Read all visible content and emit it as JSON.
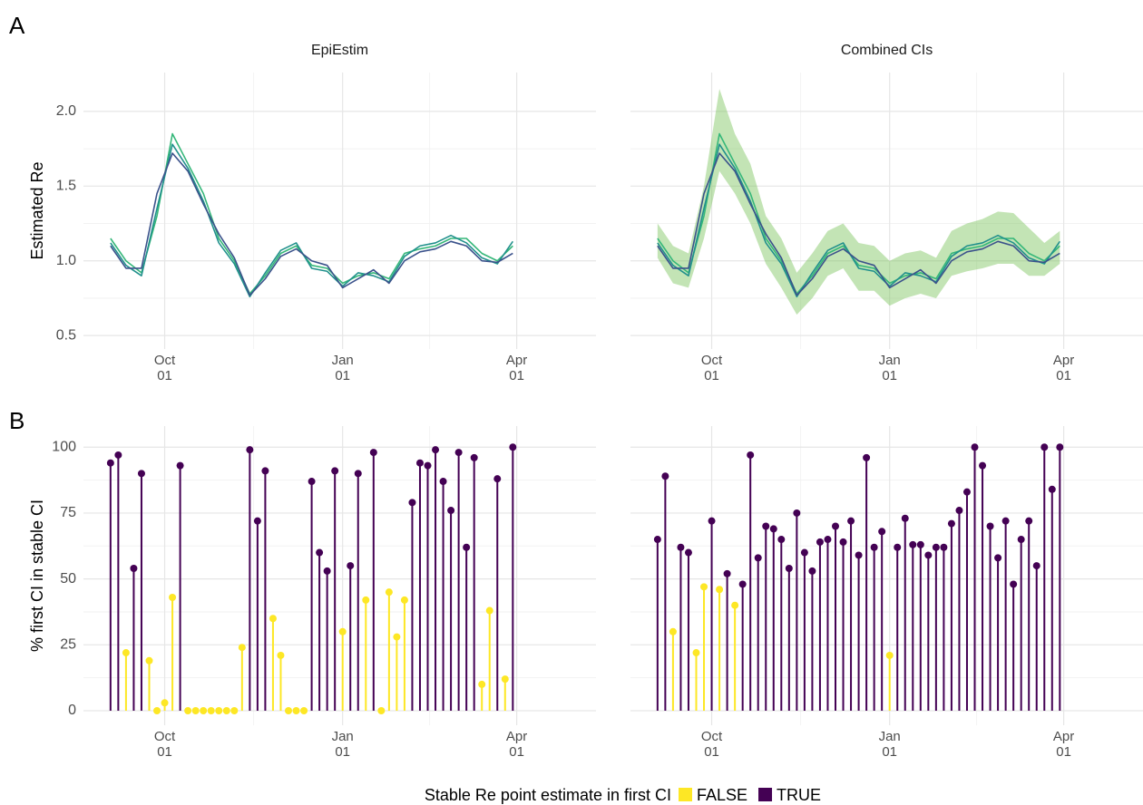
{
  "panel_labels": [
    "A",
    "B"
  ],
  "legend_title": "Stable Re point estimate in first CI",
  "chart_data": [
    {
      "type": "line",
      "title": "EpiEstim",
      "y_label": "Estimated Re",
      "x": [
        -28,
        -20,
        -12,
        -4,
        4,
        12,
        20,
        28,
        36,
        44,
        52,
        60,
        68,
        76,
        84,
        92,
        100,
        108,
        116,
        124,
        132,
        140,
        148,
        156,
        164,
        172,
        180
      ],
      "xlim": [
        -42,
        223
      ],
      "xticks": [
        {
          "value": 0,
          "label": "Oct\n01"
        },
        {
          "value": 92,
          "label": "Jan\n01"
        },
        {
          "value": 182,
          "label": "Apr\n01"
        }
      ],
      "ylim": [
        0.41,
        2.26
      ],
      "yticks": [
        {
          "value": 0.5,
          "label": "0.5"
        },
        {
          "value": 1,
          "label": "1.0"
        },
        {
          "value": 1.5,
          "label": "1.5"
        },
        {
          "value": 2,
          "label": "2.0"
        }
      ],
      "grid": true,
      "series": [
        {
          "color": "#35b779",
          "values": [
            1.15,
            1.0,
            0.92,
            1.3,
            1.85,
            1.65,
            1.45,
            1.15,
            1.0,
            0.78,
            0.9,
            1.05,
            1.1,
            0.97,
            0.95,
            0.85,
            0.9,
            0.92,
            0.88,
            1.05,
            1.08,
            1.1,
            1.15,
            1.15,
            1.05,
            1.0,
            1.1
          ]
        },
        {
          "color": "#21908c",
          "values": [
            1.12,
            0.97,
            0.9,
            1.35,
            1.78,
            1.62,
            1.4,
            1.12,
            0.98,
            0.76,
            0.92,
            1.07,
            1.12,
            0.95,
            0.93,
            0.83,
            0.92,
            0.9,
            0.86,
            1.03,
            1.1,
            1.12,
            1.17,
            1.12,
            1.02,
            0.98,
            1.13
          ]
        },
        {
          "color": "#3b528b",
          "values": [
            1.1,
            0.95,
            0.95,
            1.45,
            1.72,
            1.6,
            1.38,
            1.18,
            1.02,
            0.77,
            0.88,
            1.03,
            1.08,
            1.0,
            0.97,
            0.82,
            0.88,
            0.94,
            0.85,
            1.0,
            1.06,
            1.08,
            1.13,
            1.1,
            1.0,
            0.99,
            1.05
          ]
        }
      ]
    },
    {
      "type": "line",
      "title": "Combined CIs",
      "x": [
        -28,
        -20,
        -12,
        -4,
        4,
        12,
        20,
        28,
        36,
        44,
        52,
        60,
        68,
        76,
        84,
        92,
        100,
        108,
        116,
        124,
        132,
        140,
        148,
        156,
        164,
        172,
        180
      ],
      "xlim": [
        -42,
        223
      ],
      "xticks": [
        {
          "value": 0,
          "label": "Oct\n01"
        },
        {
          "value": 92,
          "label": "Jan\n01"
        },
        {
          "value": 182,
          "label": "Apr\n01"
        }
      ],
      "ylim": [
        0.41,
        2.26
      ],
      "yticks": [
        0.5,
        1,
        1.5,
        2
      ],
      "grid": true,
      "band": {
        "color": "#7ac35a",
        "lower": [
          1.02,
          0.85,
          0.82,
          1.15,
          1.6,
          1.45,
          1.25,
          0.98,
          0.82,
          0.64,
          0.75,
          0.9,
          0.95,
          0.8,
          0.8,
          0.7,
          0.75,
          0.78,
          0.75,
          0.9,
          0.93,
          0.95,
          0.98,
          0.98,
          0.9,
          0.9,
          0.98
        ],
        "upper": [
          1.25,
          1.1,
          1.05,
          1.5,
          2.15,
          1.85,
          1.65,
          1.3,
          1.15,
          0.92,
          1.05,
          1.2,
          1.25,
          1.12,
          1.1,
          1.0,
          1.05,
          1.07,
          1.02,
          1.2,
          1.25,
          1.28,
          1.33,
          1.32,
          1.22,
          1.12,
          1.2
        ]
      },
      "series": [
        {
          "color": "#35b779",
          "values": [
            1.15,
            1.0,
            0.92,
            1.3,
            1.85,
            1.65,
            1.45,
            1.15,
            1.0,
            0.78,
            0.9,
            1.05,
            1.1,
            0.97,
            0.95,
            0.85,
            0.9,
            0.92,
            0.88,
            1.05,
            1.08,
            1.1,
            1.15,
            1.15,
            1.05,
            1.0,
            1.1
          ]
        },
        {
          "color": "#21908c",
          "values": [
            1.12,
            0.97,
            0.9,
            1.35,
            1.78,
            1.62,
            1.4,
            1.12,
            0.98,
            0.76,
            0.92,
            1.07,
            1.12,
            0.95,
            0.93,
            0.83,
            0.92,
            0.9,
            0.86,
            1.03,
            1.1,
            1.12,
            1.17,
            1.12,
            1.02,
            0.98,
            1.13
          ]
        },
        {
          "color": "#3b528b",
          "values": [
            1.1,
            0.95,
            0.95,
            1.45,
            1.72,
            1.6,
            1.38,
            1.18,
            1.02,
            0.77,
            0.88,
            1.03,
            1.08,
            1.0,
            0.97,
            0.82,
            0.88,
            0.94,
            0.85,
            1.0,
            1.06,
            1.08,
            1.13,
            1.1,
            1.0,
            0.99,
            1.05
          ]
        }
      ]
    },
    {
      "type": "lollipop",
      "y_label": "% first CI in stable CI",
      "x": [
        -28,
        -24,
        -20,
        -16,
        -12,
        -8,
        -4,
        0,
        4,
        8,
        12,
        16,
        20,
        24,
        28,
        32,
        36,
        40,
        44,
        48,
        52,
        56,
        60,
        64,
        68,
        72,
        76,
        80,
        84,
        88,
        92,
        96,
        100,
        104,
        108,
        112,
        116,
        120,
        124,
        128,
        132,
        136,
        140,
        144,
        148,
        152,
        156,
        160,
        164,
        168,
        172,
        176,
        180
      ],
      "xlim": [
        -42,
        223
      ],
      "xticks": [
        {
          "value": 0,
          "label": "Oct\n01"
        },
        {
          "value": 92,
          "label": "Jan\n01"
        },
        {
          "value": 182,
          "label": "Apr\n01"
        }
      ],
      "ylim": [
        -5.5,
        108
      ],
      "yticks": [
        0,
        25,
        50,
        75,
        100
      ],
      "grid": true,
      "series": [
        {
          "name": "FALSE",
          "color": "#fde725",
          "values": [
            null,
            null,
            22,
            null,
            null,
            19,
            0,
            3,
            43,
            null,
            0,
            0,
            0,
            0,
            0,
            0,
            0,
            24,
            null,
            null,
            null,
            35,
            21,
            0,
            0,
            0,
            null,
            null,
            null,
            null,
            30,
            null,
            null,
            42,
            null,
            0,
            45,
            28,
            42,
            null,
            null,
            null,
            null,
            null,
            null,
            null,
            null,
            null,
            10,
            38,
            null,
            12,
            null
          ]
        },
        {
          "name": "TRUE",
          "color": "#440154",
          "values": [
            94,
            97,
            null,
            54,
            90,
            null,
            null,
            null,
            null,
            93,
            null,
            null,
            null,
            null,
            null,
            null,
            null,
            null,
            99,
            72,
            91,
            null,
            null,
            null,
            null,
            null,
            87,
            60,
            53,
            91,
            null,
            55,
            90,
            null,
            98,
            null,
            null,
            null,
            null,
            79,
            94,
            93,
            99,
            87,
            76,
            98,
            62,
            96,
            null,
            null,
            88,
            null,
            100
          ]
        }
      ]
    },
    {
      "type": "lollipop",
      "x": [
        -28,
        -24,
        -20,
        -16,
        -12,
        -8,
        -4,
        0,
        4,
        8,
        12,
        16,
        20,
        24,
        28,
        32,
        36,
        40,
        44,
        48,
        52,
        56,
        60,
        64,
        68,
        72,
        76,
        80,
        84,
        88,
        92,
        96,
        100,
        104,
        108,
        112,
        116,
        120,
        124,
        128,
        132,
        136,
        140,
        144,
        148,
        152,
        156,
        160,
        164,
        168,
        172,
        176,
        180
      ],
      "xlim": [
        -42,
        223
      ],
      "xticks": [
        {
          "value": 0,
          "label": "Oct\n01"
        },
        {
          "value": 92,
          "label": "Jan\n01"
        },
        {
          "value": 182,
          "label": "Apr\n01"
        }
      ],
      "ylim": [
        -5.5,
        108
      ],
      "yticks": [
        0,
        25,
        50,
        75,
        100
      ],
      "grid": true,
      "series": [
        {
          "color": "#fde725",
          "values": [
            null,
            null,
            30,
            null,
            null,
            22,
            47,
            null,
            46,
            null,
            40,
            null,
            null,
            null,
            null,
            null,
            null,
            null,
            null,
            null,
            null,
            null,
            null,
            null,
            null,
            null,
            null,
            null,
            null,
            null,
            21,
            null,
            null,
            null,
            null,
            null,
            null,
            null,
            null,
            null,
            null,
            null,
            null,
            null,
            null,
            null,
            null,
            null,
            null,
            null,
            null,
            null,
            null
          ]
        },
        {
          "color": "#440154",
          "values": [
            65,
            89,
            null,
            62,
            60,
            null,
            null,
            72,
            null,
            52,
            null,
            48,
            97,
            58,
            70,
            69,
            65,
            54,
            75,
            60,
            53,
            64,
            65,
            70,
            64,
            72,
            59,
            96,
            62,
            68,
            null,
            62,
            73,
            63,
            63,
            59,
            62,
            62,
            71,
            76,
            83,
            100,
            93,
            70,
            58,
            72,
            48,
            65,
            72,
            55,
            100,
            84,
            100
          ]
        }
      ]
    }
  ]
}
